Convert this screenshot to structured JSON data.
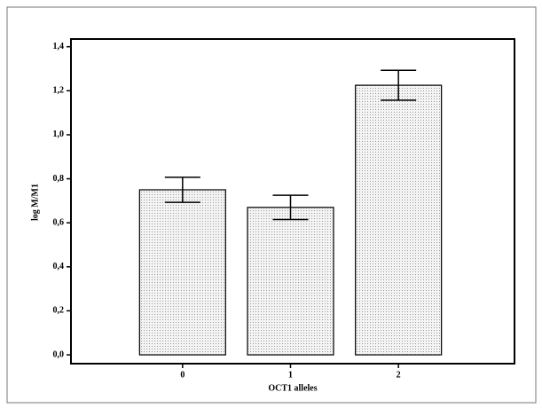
{
  "chart_data": {
    "type": "bar",
    "x_label": "OCT1 alleles",
    "y_label": "log M/M1",
    "categories": [
      "0",
      "1",
      "2"
    ],
    "values": [
      0.75,
      0.67,
      1.225
    ],
    "errors": [
      0.057,
      0.055,
      0.068
    ],
    "color": "#e6e6e6",
    "ylim": [
      -0.04,
      1.435
    ],
    "yticks": [
      {
        "value": 0,
        "label": "0,0"
      },
      {
        "value": 0.2,
        "label": "0,2"
      },
      {
        "value": 0.4,
        "label": "0,4"
      },
      {
        "value": 0.6,
        "label": "0,6"
      },
      {
        "value": 0.8,
        "label": "0,8"
      },
      {
        "value": 1.0,
        "label": "1,0"
      },
      {
        "value": 1.2,
        "label": "1,2"
      },
      {
        "value": 1.4,
        "label": "1,4"
      }
    ]
  }
}
